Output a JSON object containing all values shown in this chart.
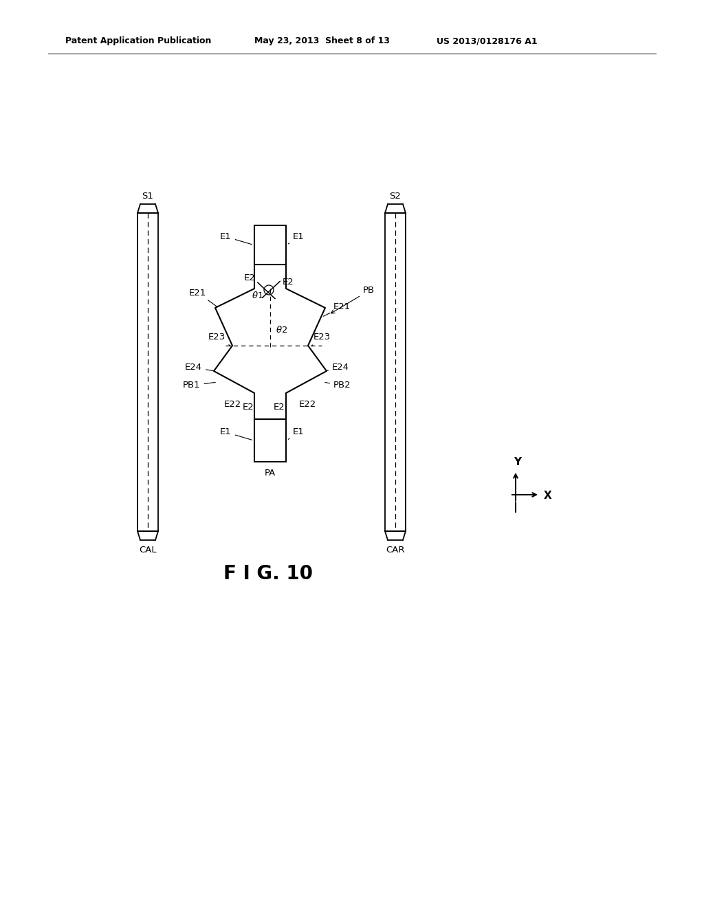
{
  "bg_color": "#ffffff",
  "line_color": "#000000",
  "header_left": "Patent Application Publication",
  "header_mid": "May 23, 2013  Sheet 8 of 13",
  "header_right": "US 2013/0128176 A1",
  "fig_label": "F I G. 10",
  "lfs": 9.5
}
